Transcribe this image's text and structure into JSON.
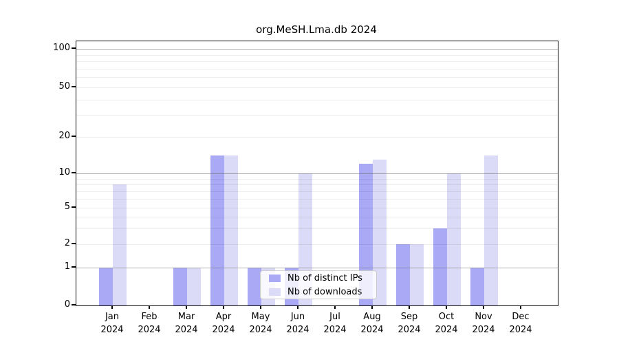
{
  "chart_data": {
    "type": "bar",
    "title": "org.MeSH.Lma.db 2024",
    "year_label": "2024",
    "categories": [
      "Jan",
      "Feb",
      "Mar",
      "Apr",
      "May",
      "Jun",
      "Jul",
      "Aug",
      "Sep",
      "Oct",
      "Nov",
      "Dec"
    ],
    "series": [
      {
        "name": "Nb of distinct IPs",
        "color": "#a9a9f5",
        "values": [
          1,
          0,
          1,
          14,
          1,
          1,
          0,
          12,
          2,
          3,
          1,
          0
        ]
      },
      {
        "name": "Nb of downloads",
        "color": "#dbdbf8",
        "values": [
          8,
          0,
          1,
          14,
          1,
          10,
          0,
          13,
          2,
          10,
          14,
          0
        ]
      }
    ],
    "yscale": "symlog",
    "ylim": [
      0,
      100
    ],
    "y_tick_values": [
      0,
      1,
      2,
      5,
      10,
      20,
      50,
      100
    ],
    "y_major_gridlines": [
      1,
      10,
      100
    ],
    "y_minor_gridlines": [
      2,
      3,
      4,
      5,
      6,
      7,
      8,
      9,
      20,
      30,
      40,
      50,
      60,
      70,
      80,
      90
    ],
    "grid": true,
    "legend_position": "inside lower center",
    "bar_color_ips": "#a9a9f5",
    "bar_color_downloads": "#dbdbf8"
  }
}
